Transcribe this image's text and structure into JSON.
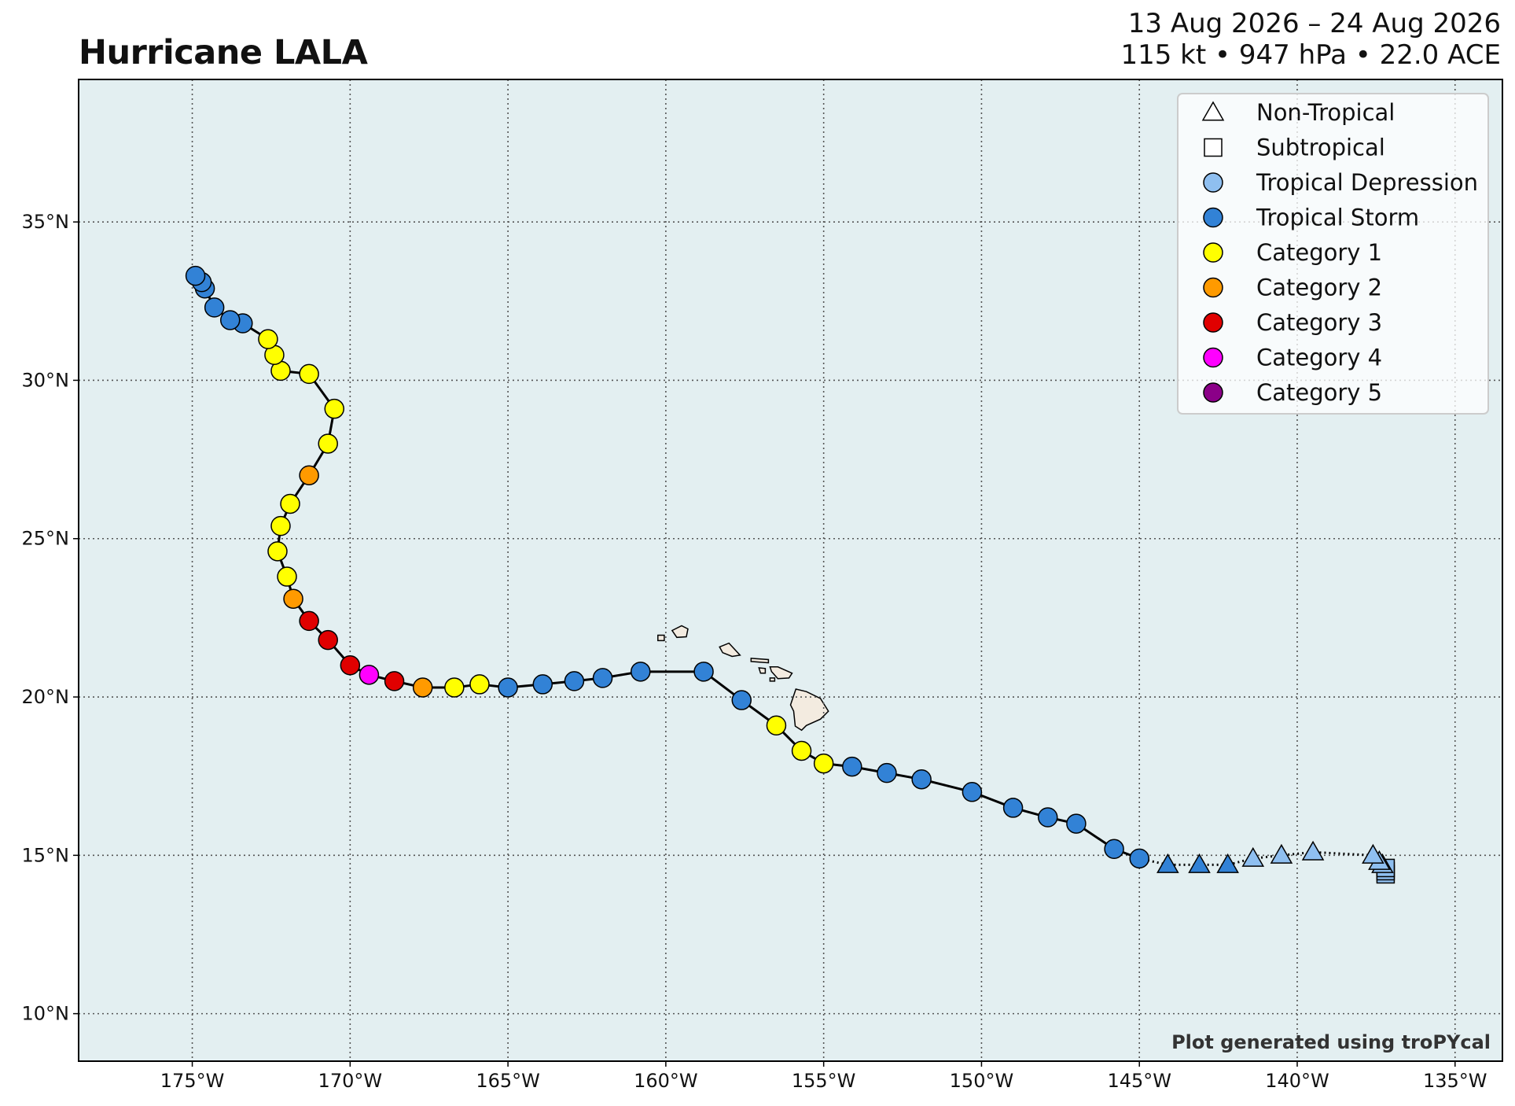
{
  "header": {
    "title": "Hurricane LALA",
    "date_range": "13 Aug 2026 – 24 Aug 2026",
    "stats": "115 kt • 947 hPa • 22.0 ACE"
  },
  "credit": "Plot generated using troPYcal",
  "map_extent": {
    "lon_min": -178.6,
    "lon_max": -133.5,
    "lat_min": 8.5,
    "lat_max": 39.5
  },
  "axes": {
    "x_ticks": [
      {
        "lon": -175,
        "label": "175°W"
      },
      {
        "lon": -170,
        "label": "170°W"
      },
      {
        "lon": -165,
        "label": "165°W"
      },
      {
        "lon": -160,
        "label": "160°W"
      },
      {
        "lon": -155,
        "label": "155°W"
      },
      {
        "lon": -150,
        "label": "150°W"
      },
      {
        "lon": -145,
        "label": "145°W"
      },
      {
        "lon": -140,
        "label": "140°W"
      },
      {
        "lon": -135,
        "label": "135°W"
      }
    ],
    "y_ticks": [
      {
        "lat": 10,
        "label": "10°N"
      },
      {
        "lat": 15,
        "label": "15°N"
      },
      {
        "lat": 20,
        "label": "20°N"
      },
      {
        "lat": 25,
        "label": "25°N"
      },
      {
        "lat": 30,
        "label": "30°N"
      },
      {
        "lat": 35,
        "label": "35°N"
      }
    ]
  },
  "colors": {
    "ocean": "#e3eff1",
    "land": "#f3ebe0",
    "track_line": "#000000",
    "grid": "#555555",
    "Tropical Depression": "#8fbff0",
    "Tropical Storm": "#3282d6",
    "Category 1": "#ffff00",
    "Category 2": "#ff9a00",
    "Category 3": "#e00000",
    "Category 4": "#ff00ff",
    "Category 5": "#8b0088"
  },
  "legend": {
    "position": "top-right",
    "items": [
      {
        "label": "Non-Tropical",
        "marker": "triangle",
        "color": "#ffffff"
      },
      {
        "label": "Subtropical",
        "marker": "square",
        "color": "#ffffff"
      },
      {
        "label": "Tropical Depression",
        "marker": "circle",
        "color": "#8fbff0"
      },
      {
        "label": "Tropical Storm",
        "marker": "circle",
        "color": "#3282d6"
      },
      {
        "label": "Category 1",
        "marker": "circle",
        "color": "#ffff00"
      },
      {
        "label": "Category 2",
        "marker": "circle",
        "color": "#ff9a00"
      },
      {
        "label": "Category 3",
        "marker": "circle",
        "color": "#e00000"
      },
      {
        "label": "Category 4",
        "marker": "circle",
        "color": "#ff00ff"
      },
      {
        "label": "Category 5",
        "marker": "circle",
        "color": "#8b0088"
      }
    ]
  },
  "track": [
    {
      "lon": -137.2,
      "lat": 14.4,
      "type": "subtropical",
      "category": "Tropical Depression"
    },
    {
      "lon": -137.2,
      "lat": 14.5,
      "type": "subtropical",
      "category": "Tropical Depression"
    },
    {
      "lon": -137.2,
      "lat": 14.6,
      "type": "subtropical",
      "category": "Tropical Depression"
    },
    {
      "lon": -137.3,
      "lat": 14.7,
      "type": "non-tropical",
      "category": "Tropical Depression"
    },
    {
      "lon": -137.4,
      "lat": 14.8,
      "type": "non-tropical",
      "category": "Tropical Depression"
    },
    {
      "lon": -137.6,
      "lat": 15.0,
      "type": "non-tropical",
      "category": "Tropical Depression"
    },
    {
      "lon": -139.5,
      "lat": 15.1,
      "type": "non-tropical",
      "category": "Tropical Depression"
    },
    {
      "lon": -140.5,
      "lat": 15.0,
      "type": "non-tropical",
      "category": "Tropical Depression"
    },
    {
      "lon": -141.4,
      "lat": 14.9,
      "type": "non-tropical",
      "category": "Tropical Depression"
    },
    {
      "lon": -142.2,
      "lat": 14.7,
      "type": "non-tropical",
      "category": "Tropical Storm"
    },
    {
      "lon": -143.1,
      "lat": 14.7,
      "type": "non-tropical",
      "category": "Tropical Storm"
    },
    {
      "lon": -144.1,
      "lat": 14.7,
      "type": "non-tropical",
      "category": "Tropical Storm"
    },
    {
      "lon": -145.0,
      "lat": 14.9,
      "type": "tropical",
      "category": "Tropical Storm"
    },
    {
      "lon": -145.8,
      "lat": 15.2,
      "type": "tropical",
      "category": "Tropical Storm"
    },
    {
      "lon": -147.0,
      "lat": 16.0,
      "type": "tropical",
      "category": "Tropical Storm"
    },
    {
      "lon": -147.9,
      "lat": 16.2,
      "type": "tropical",
      "category": "Tropical Storm"
    },
    {
      "lon": -149.0,
      "lat": 16.5,
      "type": "tropical",
      "category": "Tropical Storm"
    },
    {
      "lon": -150.3,
      "lat": 17.0,
      "type": "tropical",
      "category": "Tropical Storm"
    },
    {
      "lon": -151.9,
      "lat": 17.4,
      "type": "tropical",
      "category": "Tropical Storm"
    },
    {
      "lon": -153.0,
      "lat": 17.6,
      "type": "tropical",
      "category": "Tropical Storm"
    },
    {
      "lon": -154.1,
      "lat": 17.8,
      "type": "tropical",
      "category": "Tropical Storm"
    },
    {
      "lon": -155.0,
      "lat": 17.9,
      "type": "tropical",
      "category": "Category 1"
    },
    {
      "lon": -155.7,
      "lat": 18.3,
      "type": "tropical",
      "category": "Category 1"
    },
    {
      "lon": -156.5,
      "lat": 19.1,
      "type": "tropical",
      "category": "Category 1"
    },
    {
      "lon": -157.6,
      "lat": 19.9,
      "type": "tropical",
      "category": "Tropical Storm"
    },
    {
      "lon": -158.8,
      "lat": 20.8,
      "type": "tropical",
      "category": "Tropical Storm"
    },
    {
      "lon": -160.8,
      "lat": 20.8,
      "type": "tropical",
      "category": "Tropical Storm"
    },
    {
      "lon": -162.0,
      "lat": 20.6,
      "type": "tropical",
      "category": "Tropical Storm"
    },
    {
      "lon": -162.9,
      "lat": 20.5,
      "type": "tropical",
      "category": "Tropical Storm"
    },
    {
      "lon": -163.9,
      "lat": 20.4,
      "type": "tropical",
      "category": "Tropical Storm"
    },
    {
      "lon": -165.0,
      "lat": 20.3,
      "type": "tropical",
      "category": "Tropical Storm"
    },
    {
      "lon": -165.9,
      "lat": 20.4,
      "type": "tropical",
      "category": "Category 1"
    },
    {
      "lon": -166.7,
      "lat": 20.3,
      "type": "tropical",
      "category": "Category 1"
    },
    {
      "lon": -167.7,
      "lat": 20.3,
      "type": "tropical",
      "category": "Category 2"
    },
    {
      "lon": -168.6,
      "lat": 20.5,
      "type": "tropical",
      "category": "Category 3"
    },
    {
      "lon": -169.4,
      "lat": 20.7,
      "type": "tropical",
      "category": "Category 4"
    },
    {
      "lon": -170.0,
      "lat": 21.0,
      "type": "tropical",
      "category": "Category 3"
    },
    {
      "lon": -170.7,
      "lat": 21.8,
      "type": "tropical",
      "category": "Category 3"
    },
    {
      "lon": -171.3,
      "lat": 22.4,
      "type": "tropical",
      "category": "Category 3"
    },
    {
      "lon": -171.8,
      "lat": 23.1,
      "type": "tropical",
      "category": "Category 2"
    },
    {
      "lon": -172.0,
      "lat": 23.8,
      "type": "tropical",
      "category": "Category 1"
    },
    {
      "lon": -172.3,
      "lat": 24.6,
      "type": "tropical",
      "category": "Category 1"
    },
    {
      "lon": -172.2,
      "lat": 25.4,
      "type": "tropical",
      "category": "Category 1"
    },
    {
      "lon": -171.9,
      "lat": 26.1,
      "type": "tropical",
      "category": "Category 1"
    },
    {
      "lon": -171.3,
      "lat": 27.0,
      "type": "tropical",
      "category": "Category 2"
    },
    {
      "lon": -170.7,
      "lat": 28.0,
      "type": "tropical",
      "category": "Category 1"
    },
    {
      "lon": -170.5,
      "lat": 29.1,
      "type": "tropical",
      "category": "Category 1"
    },
    {
      "lon": -171.3,
      "lat": 30.2,
      "type": "tropical",
      "category": "Category 1"
    },
    {
      "lon": -172.2,
      "lat": 30.3,
      "type": "tropical",
      "category": "Category 1"
    },
    {
      "lon": -172.4,
      "lat": 30.8,
      "type": "tropical",
      "category": "Category 1"
    },
    {
      "lon": -172.6,
      "lat": 31.3,
      "type": "tropical",
      "category": "Category 1"
    },
    {
      "lon": -173.4,
      "lat": 31.8,
      "type": "tropical",
      "category": "Tropical Storm"
    },
    {
      "lon": -173.8,
      "lat": 31.9,
      "type": "tropical",
      "category": "Tropical Storm"
    },
    {
      "lon": -174.3,
      "lat": 32.3,
      "type": "tropical",
      "category": "Tropical Storm"
    },
    {
      "lon": -174.6,
      "lat": 32.9,
      "type": "tropical",
      "category": "Tropical Storm"
    },
    {
      "lon": -174.7,
      "lat": 33.1,
      "type": "tropical",
      "category": "Tropical Storm"
    },
    {
      "lon": -174.9,
      "lat": 33.3,
      "type": "tropical",
      "category": "Tropical Storm"
    }
  ],
  "islands": [
    {
      "name": "Hawaii",
      "outline": [
        [
          -155.88,
          20.25
        ],
        [
          -155.55,
          20.17
        ],
        [
          -155.1,
          19.95
        ],
        [
          -154.85,
          19.55
        ],
        [
          -155.1,
          19.3
        ],
        [
          -155.55,
          19.1
        ],
        [
          -155.7,
          18.95
        ],
        [
          -155.9,
          19.08
        ],
        [
          -155.95,
          19.55
        ],
        [
          -156.05,
          19.75
        ],
        [
          -155.88,
          20.25
        ]
      ]
    },
    {
      "name": "Maui",
      "outline": [
        [
          -156.7,
          20.95
        ],
        [
          -156.45,
          20.95
        ],
        [
          -156.0,
          20.75
        ],
        [
          -156.1,
          20.6
        ],
        [
          -156.45,
          20.58
        ],
        [
          -156.65,
          20.8
        ],
        [
          -156.7,
          20.95
        ]
      ]
    },
    {
      "name": "Molokai",
      "outline": [
        [
          -157.3,
          21.22
        ],
        [
          -156.75,
          21.18
        ],
        [
          -156.75,
          21.08
        ],
        [
          -157.3,
          21.12
        ],
        [
          -157.3,
          21.22
        ]
      ]
    },
    {
      "name": "Lanai",
      "outline": [
        [
          -157.05,
          20.92
        ],
        [
          -156.85,
          20.9
        ],
        [
          -156.85,
          20.75
        ],
        [
          -157.0,
          20.75
        ],
        [
          -157.05,
          20.92
        ]
      ]
    },
    {
      "name": "Kahoolawe",
      "outline": [
        [
          -156.7,
          20.6
        ],
        [
          -156.55,
          20.6
        ],
        [
          -156.55,
          20.5
        ],
        [
          -156.7,
          20.5
        ],
        [
          -156.7,
          20.6
        ]
      ]
    },
    {
      "name": "Oahu",
      "outline": [
        [
          -158.3,
          21.58
        ],
        [
          -158.0,
          21.7
        ],
        [
          -157.65,
          21.32
        ],
        [
          -157.9,
          21.28
        ],
        [
          -158.2,
          21.4
        ],
        [
          -158.3,
          21.58
        ]
      ]
    },
    {
      "name": "Kauai",
      "outline": [
        [
          -159.8,
          22.1
        ],
        [
          -159.5,
          22.25
        ],
        [
          -159.3,
          22.15
        ],
        [
          -159.35,
          21.9
        ],
        [
          -159.65,
          21.88
        ],
        [
          -159.8,
          22.1
        ]
      ]
    },
    {
      "name": "Niihau",
      "outline": [
        [
          -160.25,
          21.95
        ],
        [
          -160.05,
          21.95
        ],
        [
          -160.05,
          21.78
        ],
        [
          -160.25,
          21.78
        ],
        [
          -160.25,
          21.95
        ]
      ]
    }
  ]
}
